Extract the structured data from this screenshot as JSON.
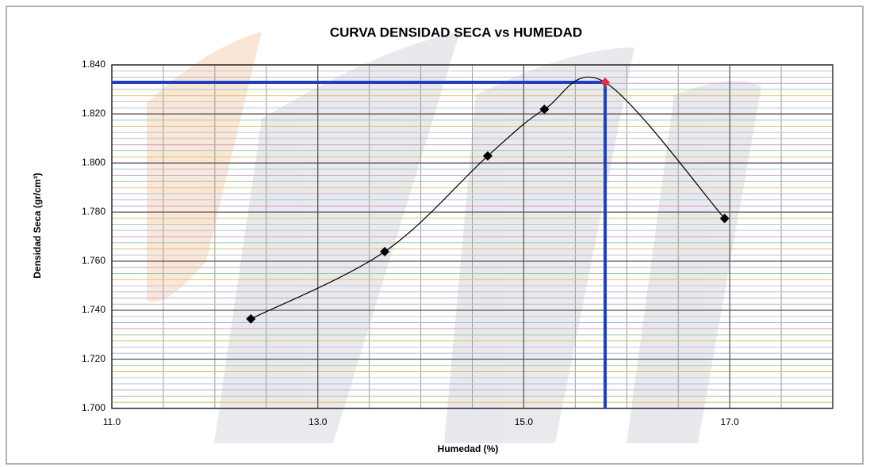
{
  "chart_data": {
    "type": "scatter",
    "title": "CURVA DENSIDAD SECA vs HUMEDAD",
    "x_label": "Humedad (%)",
    "y_label": "Densidad Seca (gr/cm³)",
    "xlim": [
      11,
      18
    ],
    "ylim": [
      1.7,
      1.84
    ],
    "xticks": [
      {
        "value": 11,
        "label": "11.0"
      },
      {
        "value": 13,
        "label": "13.0"
      },
      {
        "value": 15,
        "label": "15.0"
      },
      {
        "value": 17,
        "label": "17.0"
      }
    ],
    "yticks": [
      {
        "value": 1.7,
        "label": "1.700"
      },
      {
        "value": 1.72,
        "label": "1.720"
      },
      {
        "value": 1.74,
        "label": "1.740"
      },
      {
        "value": 1.76,
        "label": "1.760"
      },
      {
        "value": 1.78,
        "label": "1.780"
      },
      {
        "value": 1.8,
        "label": "1.800"
      },
      {
        "value": 1.82,
        "label": "1.820"
      },
      {
        "value": 1.84,
        "label": "1.840"
      }
    ],
    "grid": true,
    "minor_grid": {
      "x": 0.5,
      "y": 0.0025
    },
    "series": [
      {
        "color": "#000000",
        "x": [
          12.35,
          13.65,
          14.65,
          15.2,
          16.95
        ],
        "values": [
          1.7365,
          1.7639,
          1.8029,
          1.8219,
          1.7774
        ]
      }
    ],
    "optimum": {
      "x": 15.79,
      "y": 1.8329,
      "color": "#e0303a",
      "line_color": "#1f3fc0"
    }
  }
}
